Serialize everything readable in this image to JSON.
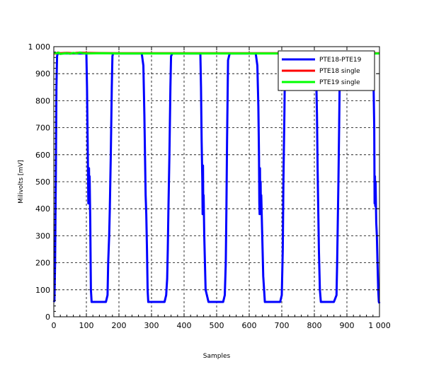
{
  "chart_data": {
    "type": "line",
    "xlabel": "Samples",
    "ylabel": "Milivolts [mV]",
    "xlim": [
      0,
      1000
    ],
    "ylim": [
      0,
      1000
    ],
    "xticks": [
      "0",
      "100",
      "200",
      "300",
      "400",
      "500",
      "600",
      "700",
      "800",
      "900",
      "1 000"
    ],
    "yticks": [
      "0",
      "100",
      "200",
      "300",
      "400",
      "500",
      "600",
      "700",
      "800",
      "900",
      "1 000"
    ],
    "grid": true,
    "legend_position": "top-right",
    "series": [
      {
        "name": "PTE18-PTE19",
        "color": "#0000ff",
        "x": [
          0,
          2,
          4,
          6,
          8,
          10,
          12,
          15,
          20,
          40,
          60,
          80,
          100,
          102,
          104,
          106,
          108,
          109,
          110,
          111,
          112,
          113,
          114,
          116,
          120,
          130,
          140,
          150,
          160,
          165,
          167,
          170,
          172,
          175,
          178,
          180,
          182,
          186,
          200,
          250,
          270,
          275,
          278,
          280,
          282,
          284,
          286,
          288,
          290,
          295,
          300,
          320,
          340,
          345,
          348,
          350,
          352,
          355,
          358,
          360,
          364,
          400,
          440,
          450,
          452,
          454,
          456,
          457,
          458,
          459,
          460,
          462,
          466,
          475,
          500,
          520,
          525,
          528,
          530,
          532,
          535,
          540,
          560,
          600,
          620,
          625,
          628,
          630,
          631,
          632,
          633,
          634,
          635,
          636,
          637,
          640,
          643,
          648,
          660,
          680,
          695,
          700,
          703,
          705,
          708,
          710,
          712,
          716,
          760,
          800,
          805,
          808,
          810,
          812,
          814,
          817,
          820,
          840,
          860,
          868,
          870,
          872,
          874,
          876,
          878,
          880,
          884,
          930,
          970,
          980,
          982,
          984,
          985,
          986,
          987,
          988,
          990,
          992,
          994,
          996,
          998,
          1000
        ],
        "y": [
          55,
          60,
          200,
          500,
          850,
          965,
          975,
          975,
          975,
          975,
          975,
          975,
          975,
          850,
          650,
          420,
          550,
          430,
          520,
          420,
          350,
          200,
          100,
          55,
          55,
          55,
          55,
          55,
          55,
          80,
          200,
          300,
          400,
          600,
          850,
          965,
          975,
          975,
          975,
          975,
          975,
          930,
          750,
          600,
          450,
          380,
          250,
          100,
          55,
          55,
          55,
          55,
          55,
          80,
          140,
          250,
          400,
          600,
          850,
          965,
          975,
          975,
          975,
          975,
          850,
          650,
          500,
          380,
          560,
          400,
          450,
          300,
          100,
          55,
          55,
          55,
          80,
          200,
          400,
          650,
          950,
          975,
          975,
          975,
          975,
          930,
          780,
          600,
          420,
          380,
          550,
          400,
          500,
          380,
          450,
          300,
          150,
          55,
          55,
          55,
          55,
          80,
          250,
          500,
          750,
          950,
          975,
          975,
          975,
          975,
          930,
          750,
          550,
          400,
          250,
          100,
          55,
          55,
          55,
          80,
          200,
          350,
          500,
          700,
          900,
          965,
          975,
          975,
          975,
          950,
          850,
          700,
          420,
          520,
          410,
          500,
          350,
          300,
          200,
          100,
          55,
          50
        ]
      },
      {
        "name": "PTE18 single",
        "color": "#ff0000",
        "x": [
          0,
          5,
          10,
          12,
          20,
          40,
          60,
          80,
          100,
          200,
          300,
          400,
          500,
          600,
          700,
          800,
          900,
          1000
        ],
        "y": [
          975,
          975,
          975,
          978,
          976,
          977,
          976,
          978,
          977,
          976,
          976,
          976,
          976,
          976,
          976,
          976,
          976,
          976
        ]
      },
      {
        "name": "PTE19 single",
        "color": "#00ff00",
        "x": [
          0,
          5,
          10,
          15,
          20,
          30,
          40,
          50,
          60,
          70,
          80,
          90,
          100,
          150,
          200,
          300,
          400,
          500,
          600,
          700,
          800,
          900,
          1000
        ],
        "y": [
          976,
          977,
          975,
          978,
          973,
          975,
          976,
          974,
          977,
          975,
          978,
          976,
          975,
          976,
          975,
          975,
          975,
          975,
          975,
          975,
          975,
          975,
          975
        ]
      }
    ]
  }
}
